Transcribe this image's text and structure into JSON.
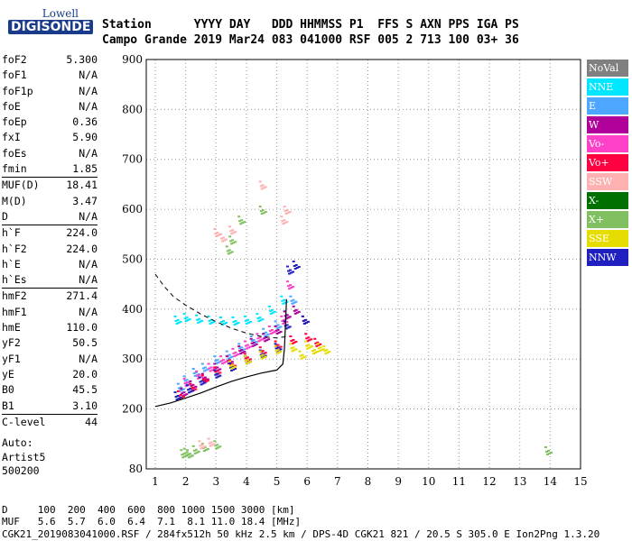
{
  "logo": {
    "top": "Lowell",
    "bottom": "DIGISONDE"
  },
  "header": {
    "line1": "Station      YYYY DAY   DDD HHMMSS P1  FFS S AXN PPS IGA PS",
    "line2": "Campo Grande 2019 Mar24 083 041000 RSF 005 2 713 100 03+ 36"
  },
  "params": [
    {
      "label": "foF2",
      "value": "5.300"
    },
    {
      "label": "foF1",
      "value": "N/A"
    },
    {
      "label": "foF1p",
      "value": "N/A"
    },
    {
      "label": "foE",
      "value": "N/A"
    },
    {
      "label": "foEp",
      "value": "0.36"
    },
    {
      "label": "fxI",
      "value": "5.90"
    },
    {
      "label": "foEs",
      "value": "N/A"
    },
    {
      "label": "fmin",
      "value": "1.85"
    },
    {
      "label": "MUF(D)",
      "value": "18.41"
    },
    {
      "label": "M(D)",
      "value": "3.47"
    },
    {
      "label": "D",
      "value": "N/A"
    },
    {
      "label": "h`F",
      "value": "224.0"
    },
    {
      "label": "h`F2",
      "value": "224.0"
    },
    {
      "label": "h`E",
      "value": "N/A"
    },
    {
      "label": "h`Es",
      "value": "N/A"
    },
    {
      "label": "hmF2",
      "value": "271.4"
    },
    {
      "label": "hmF1",
      "value": "N/A"
    },
    {
      "label": "hmE",
      "value": "110.0"
    },
    {
      "label": "yF2",
      "value": "50.5"
    },
    {
      "label": "yF1",
      "value": "N/A"
    },
    {
      "label": "yE",
      "value": "20.0"
    },
    {
      "label": "B0",
      "value": "45.5"
    },
    {
      "label": "B1",
      "value": "3.10"
    },
    {
      "label": "C-level",
      "value": "44"
    }
  ],
  "auto": {
    "line1": "Auto:",
    "line2": "Artist5",
    "line3": "500200"
  },
  "legend": [
    {
      "label": "NoVal",
      "color": "#808080"
    },
    {
      "label": "NNE",
      "color": "#00e6ff"
    },
    {
      "label": "E",
      "color": "#4da6ff"
    },
    {
      "label": "W",
      "color": "#b0009a"
    },
    {
      "label": "Vo-",
      "color": "#ff40c8"
    },
    {
      "label": "Vo+",
      "color": "#ff0040"
    },
    {
      "label": "SSW",
      "color": "#ffb0b0"
    },
    {
      "label": "X-",
      "color": "#007000"
    },
    {
      "label": "X+",
      "color": "#80c060"
    },
    {
      "label": "SSE",
      "color": "#e6dc00"
    },
    {
      "label": "NNW",
      "color": "#2020c0"
    }
  ],
  "footer": {
    "line1": "D     100  200  400  600  800 1000 1500 3000 [km]",
    "line2": "MUF   5.6  5.7  6.0  6.4  7.1  8.1 11.0 18.4 [MHz]",
    "line3": "CGK21_2019083041000.RSF / 284fx512h 50 kHz 2.5 km / DPS-4D CGK21 821 / 20.5 S 305.0 E Ion2Png 1.3.20"
  },
  "chart_data": {
    "type": "scatter",
    "title": "",
    "xlabel": "",
    "ylabel": "",
    "xlim": [
      1,
      15
    ],
    "ylim": [
      80,
      900
    ],
    "xticks": [
      1,
      2,
      3,
      4,
      5,
      6,
      7,
      8,
      9,
      10,
      11,
      12,
      13,
      14,
      15
    ],
    "yticks": [
      80,
      200,
      300,
      400,
      500,
      600,
      700,
      800,
      900
    ],
    "grid": true,
    "series": [
      {
        "color": "#4da6ff",
        "points": [
          [
            1.8,
            245
          ],
          [
            2.0,
            260
          ],
          [
            2.3,
            275
          ],
          [
            2.6,
            285
          ],
          [
            3.0,
            300
          ],
          [
            3.4,
            310
          ],
          [
            3.8,
            325
          ],
          [
            4.2,
            340
          ],
          [
            4.6,
            355
          ],
          [
            5.0,
            370
          ],
          [
            5.3,
            390
          ],
          [
            5.5,
            420
          ]
        ]
      },
      {
        "color": "#00e6ff",
        "points": [
          [
            1.7,
            380
          ],
          [
            2.0,
            385
          ],
          [
            2.4,
            382
          ],
          [
            2.8,
            380
          ],
          [
            3.2,
            378
          ],
          [
            3.6,
            378
          ],
          [
            4.0,
            380
          ],
          [
            4.4,
            385
          ],
          [
            4.8,
            400
          ],
          [
            5.2,
            420
          ]
        ]
      },
      {
        "color": "#b0009a",
        "points": [
          [
            1.9,
            235
          ],
          [
            2.2,
            250
          ],
          [
            2.6,
            265
          ],
          [
            3.0,
            285
          ],
          [
            3.4,
            300
          ],
          [
            3.8,
            320
          ],
          [
            4.2,
            335
          ],
          [
            4.6,
            345
          ],
          [
            5.0,
            360
          ],
          [
            5.3,
            390
          ],
          [
            5.6,
            400
          ],
          [
            5.9,
            380
          ]
        ]
      },
      {
        "color": "#ff40c8",
        "points": [
          [
            2.0,
            255
          ],
          [
            2.4,
            270
          ],
          [
            2.8,
            285
          ],
          [
            3.2,
            300
          ],
          [
            3.6,
            315
          ],
          [
            4.0,
            330
          ],
          [
            4.4,
            345
          ],
          [
            4.8,
            360
          ],
          [
            5.2,
            380
          ],
          [
            5.4,
            450
          ]
        ]
      },
      {
        "color": "#ff0040",
        "points": [
          [
            1.8,
            230
          ],
          [
            2.2,
            245
          ],
          [
            2.6,
            262
          ],
          [
            3.0,
            278
          ],
          [
            3.5,
            292
          ],
          [
            4.0,
            305
          ],
          [
            4.5,
            318
          ],
          [
            5.0,
            330
          ],
          [
            5.5,
            340
          ],
          [
            6.0,
            345
          ],
          [
            6.3,
            335
          ]
        ]
      },
      {
        "color": "#2020c0",
        "points": [
          [
            1.7,
            228
          ],
          [
            2.1,
            242
          ],
          [
            2.5,
            258
          ],
          [
            3.0,
            272
          ],
          [
            3.5,
            286
          ],
          [
            4.0,
            300
          ],
          [
            4.5,
            312
          ],
          [
            5.0,
            325
          ],
          [
            5.3,
            370
          ],
          [
            5.4,
            480
          ],
          [
            5.6,
            490
          ],
          [
            5.9,
            380
          ]
        ]
      },
      {
        "color": "#e6dc00",
        "points": [
          [
            3.5,
            290
          ],
          [
            4.0,
            300
          ],
          [
            4.5,
            310
          ],
          [
            5.0,
            320
          ],
          [
            5.5,
            325
          ],
          [
            6.0,
            330
          ],
          [
            6.2,
            320
          ],
          [
            6.4,
            325
          ],
          [
            6.6,
            320
          ],
          [
            5.8,
            310
          ]
        ]
      },
      {
        "color": "#80c060",
        "points": [
          [
            1.9,
            112
          ],
          [
            2.0,
            115
          ],
          [
            2.1,
            112
          ],
          [
            2.3,
            120
          ],
          [
            2.6,
            125
          ],
          [
            3.0,
            130
          ],
          [
            13.9,
            118
          ],
          [
            3.4,
            520
          ],
          [
            3.5,
            540
          ],
          [
            3.8,
            580
          ],
          [
            4.5,
            600
          ]
        ]
      },
      {
        "color": "#ffb0b0",
        "points": [
          [
            2.5,
            130
          ],
          [
            2.8,
            135
          ],
          [
            3.0,
            555
          ],
          [
            3.2,
            545
          ],
          [
            3.5,
            560
          ],
          [
            4.5,
            650
          ],
          [
            5.2,
            580
          ],
          [
            5.3,
            600
          ]
        ]
      }
    ],
    "virtual_height_curve": [
      [
        1.0,
        470
      ],
      [
        1.3,
        445
      ],
      [
        1.6,
        425
      ],
      [
        2.0,
        408
      ],
      [
        2.5,
        390
      ],
      [
        3.0,
        375
      ],
      [
        3.5,
        362
      ],
      [
        4.0,
        352
      ],
      [
        4.5,
        345
      ],
      [
        5.0,
        342
      ],
      [
        5.3,
        345
      ]
    ],
    "profile_curve": [
      [
        1.0,
        205
      ],
      [
        1.5,
        212
      ],
      [
        2.0,
        222
      ],
      [
        2.5,
        232
      ],
      [
        3.0,
        244
      ],
      [
        3.5,
        255
      ],
      [
        4.0,
        264
      ],
      [
        4.5,
        272
      ],
      [
        5.0,
        278
      ],
      [
        5.2,
        290
      ],
      [
        5.25,
        320
      ],
      [
        5.3,
        390
      ],
      [
        5.32,
        420
      ]
    ]
  }
}
